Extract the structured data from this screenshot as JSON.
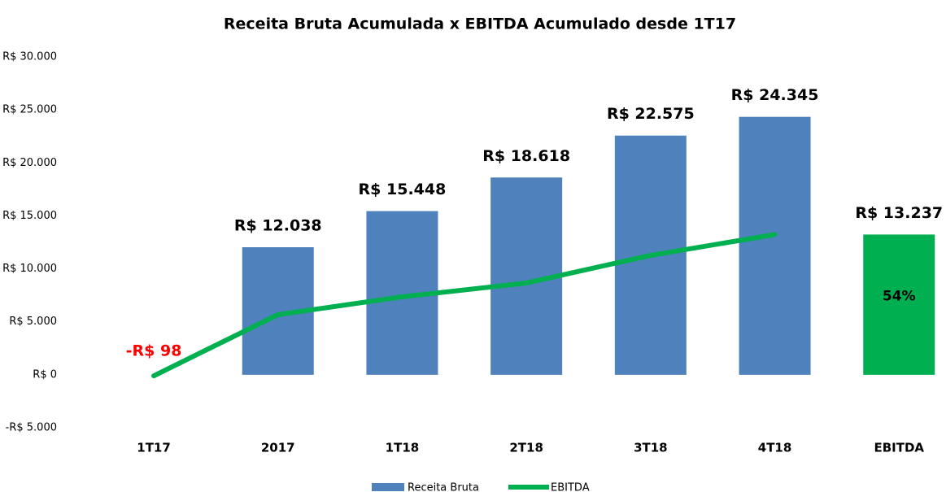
{
  "chart_data": {
    "type": "bar_line",
    "title": "Receita Bruta Acumulada x EBITDA Acumulado desde 1T17",
    "categories": [
      "1T17",
      "2017",
      "1T18",
      "2T18",
      "3T18",
      "4T18",
      "EBITDA"
    ],
    "series": [
      {
        "name": "Receita Bruta",
        "type": "bar",
        "color": "#4f81bd",
        "colors": [
          null,
          "#4f81bd",
          "#4f81bd",
          "#4f81bd",
          "#4f81bd",
          "#4f81bd",
          "#00b050"
        ],
        "values": [
          null,
          12038,
          15448,
          18618,
          22575,
          24345,
          13237
        ],
        "value_labels": [
          null,
          "R$ 12.038",
          "R$ 15.448",
          "R$ 18.618",
          "R$ 22.575",
          "R$ 24.345",
          "R$ 13.237"
        ]
      },
      {
        "name": "EBITDA",
        "type": "line",
        "color": "#00b050",
        "value_label_color": "#ff0000",
        "values": [
          -98,
          5675,
          7360,
          8665,
          11270,
          13237,
          null
        ],
        "value_labels": [
          "-R$ 98",
          null,
          null,
          null,
          null,
          null,
          null
        ]
      }
    ],
    "annotation": {
      "text": "54%",
      "category": "EBITDA"
    },
    "ylim": [
      -5000,
      30000
    ],
    "yticks": [
      {
        "value": -5000,
        "label": "-R$ 5.000"
      },
      {
        "value": 0,
        "label": "R$ 0"
      },
      {
        "value": 5000,
        "label": "R$ 5.000"
      },
      {
        "value": 10000,
        "label": "R$ 10.000"
      },
      {
        "value": 15000,
        "label": "R$ 15.000"
      },
      {
        "value": 20000,
        "label": "R$ 20.000"
      },
      {
        "value": 25000,
        "label": "R$ 25.000"
      },
      {
        "value": 30000,
        "label": "R$ 30.000"
      }
    ],
    "grid": false,
    "legend": "bottom"
  }
}
